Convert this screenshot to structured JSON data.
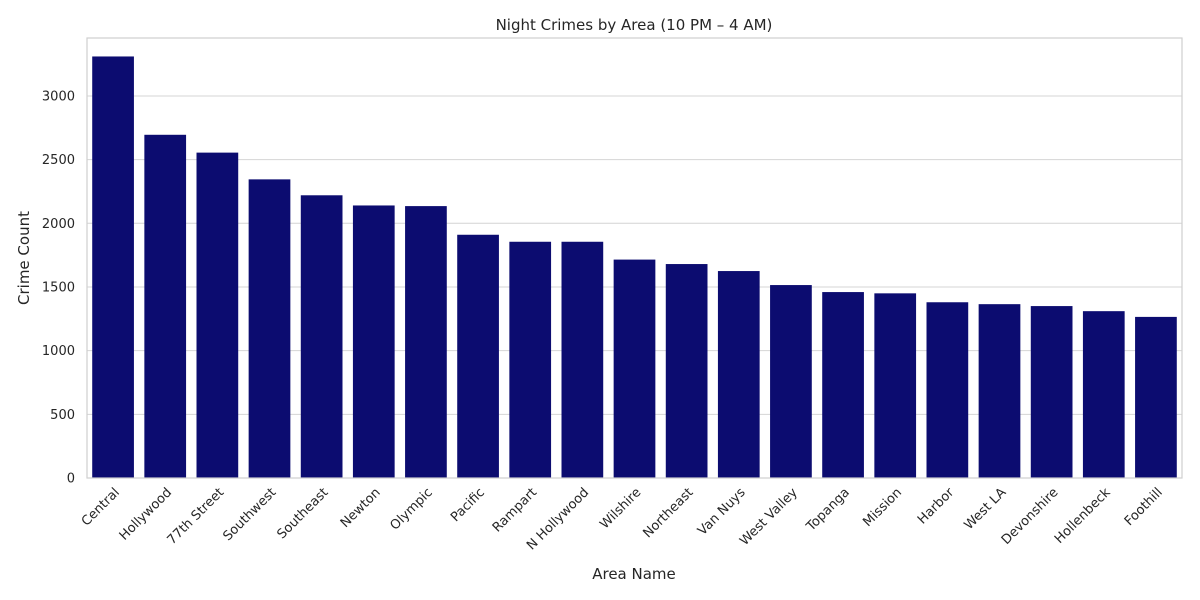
{
  "chart_data": {
    "type": "bar",
    "title": "Night Crimes by Area (10 PM – 4 AM)",
    "xlabel": "Area Name",
    "ylabel": "Crime Count",
    "categories": [
      "Central",
      "Hollywood",
      "77th Street",
      "Southwest",
      "Southeast",
      "Newton",
      "Olympic",
      "Pacific",
      "Rampart",
      "N Hollywood",
      "Wilshire",
      "Northeast",
      "Van Nuys",
      "West Valley",
      "Topanga",
      "Mission",
      "Harbor",
      "West LA",
      "Devonshire",
      "Hollenbeck",
      "Foothill"
    ],
    "values": [
      3310,
      2695,
      2555,
      2345,
      2220,
      2140,
      2135,
      1910,
      1855,
      1855,
      1715,
      1680,
      1625,
      1515,
      1460,
      1450,
      1380,
      1365,
      1350,
      1310,
      1265
    ],
    "ylim": [
      0,
      3455
    ],
    "yticks": [
      0,
      500,
      1000,
      1500,
      2000,
      2500,
      3000
    ],
    "grid": "horizontal",
    "bar_color": "#0c0c70"
  }
}
